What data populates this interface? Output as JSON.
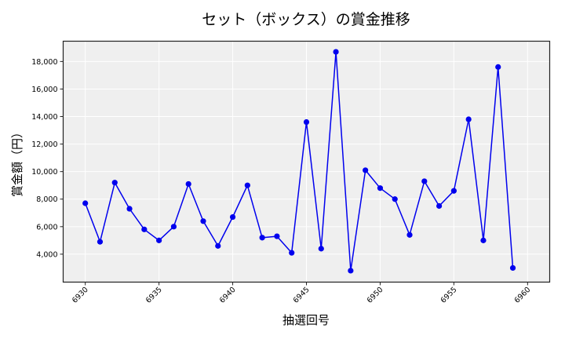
{
  "chart_data": {
    "type": "line",
    "title": "セット（ボックス）の賞金推移",
    "xlabel": "抽選回号",
    "ylabel": "賞金額（円）",
    "x": [
      6930,
      6931,
      6932,
      6933,
      6934,
      6935,
      6936,
      6937,
      6938,
      6939,
      6940,
      6941,
      6942,
      6943,
      6944,
      6945,
      6946,
      6947,
      6948,
      6949,
      6950,
      6951,
      6952,
      6953,
      6954,
      6955,
      6956,
      6957,
      6958,
      6959
    ],
    "series": [
      {
        "name": "セット（ボックス）",
        "values": [
          7700,
          4900,
          9200,
          7300,
          5800,
          5000,
          6000,
          9100,
          6400,
          4600,
          6700,
          9000,
          5200,
          5300,
          4100,
          13600,
          4400,
          18700,
          2800,
          10100,
          8800,
          8000,
          5400,
          9300,
          7500,
          8600,
          13800,
          5000,
          17600,
          3000
        ],
        "color": "#0000ee",
        "marker": "circle"
      }
    ],
    "xticks": [
      6930,
      6935,
      6940,
      6945,
      6950,
      6955,
      6960
    ],
    "yticks": [
      4000,
      6000,
      8000,
      10000,
      12000,
      14000,
      16000,
      18000
    ],
    "ytick_labels": [
      "4,000",
      "6,000",
      "8,000",
      "10,000",
      "12,000",
      "14,000",
      "16,000",
      "18,000"
    ],
    "xlim": [
      6928.5,
      6961.5
    ],
    "ylim": [
      1970,
      19475
    ],
    "grid": true,
    "legend": null,
    "background": "#efefef"
  }
}
